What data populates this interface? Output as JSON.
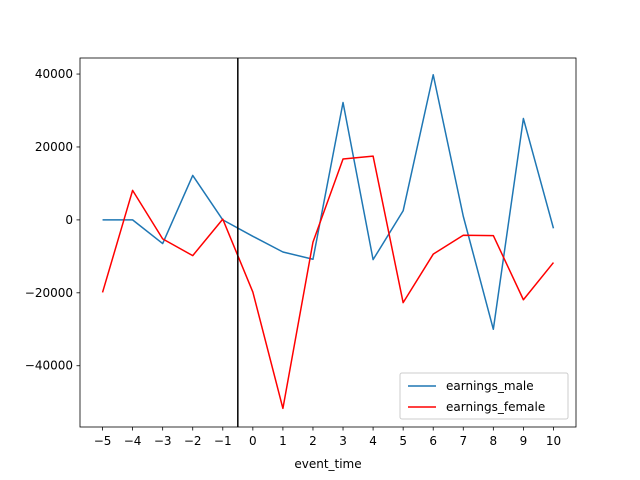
{
  "chart_data": {
    "type": "line",
    "title": "",
    "xlabel": "event_time",
    "ylabel": "",
    "x": [
      -5,
      -4,
      -3,
      -2,
      -1,
      0,
      1,
      2,
      3,
      4,
      5,
      6,
      7,
      8,
      9,
      10
    ],
    "xticks": [
      "−5",
      "−4",
      "−3",
      "−2",
      "−1",
      "0",
      "1",
      "2",
      "3",
      "4",
      "5",
      "6",
      "7",
      "8",
      "9",
      "10"
    ],
    "xlim": [
      -5.75,
      10.75
    ],
    "yticks": [
      {
        "value": 40000,
        "label": "40000"
      },
      {
        "value": 20000,
        "label": "20000"
      },
      {
        "value": 0,
        "label": "0"
      },
      {
        "value": -20000,
        "label": "−20000"
      },
      {
        "value": -40000,
        "label": "−40000"
      }
    ],
    "ylim": [
      -56800,
      44400
    ],
    "vline": {
      "x": -0.5,
      "color": "#000000"
    },
    "legend_position": "lower right",
    "grid": false,
    "series": [
      {
        "name": "earnings_male",
        "color": "#1f77b4",
        "values": [
          0,
          0,
          -6500,
          12200,
          0,
          -4500,
          -8800,
          -10800,
          32200,
          -10900,
          2500,
          39800,
          1000,
          -30000,
          27800,
          -2300
        ]
      },
      {
        "name": "earnings_female",
        "color": "#ff0000",
        "values": [
          -19900,
          8100,
          -5200,
          -9800,
          200,
          -19800,
          -51700,
          -6100,
          16700,
          17500,
          -22700,
          -9400,
          -4200,
          -4300,
          -21900,
          -11700
        ]
      }
    ]
  }
}
